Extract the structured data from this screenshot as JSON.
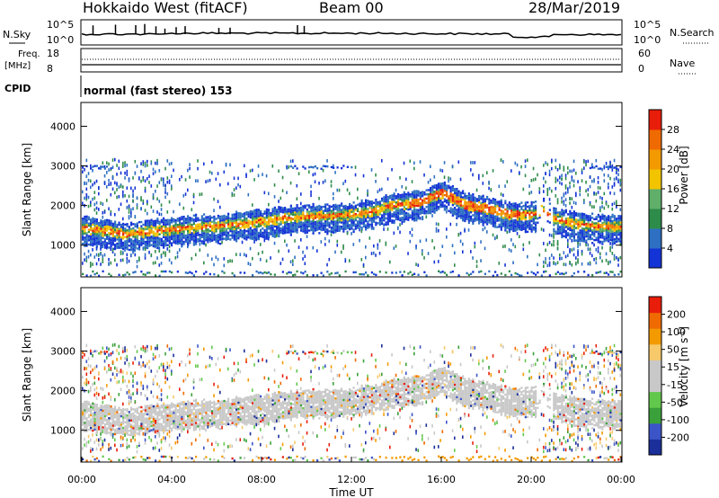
{
  "header": {
    "title": "Hokkaido West (fitACF)",
    "beam": "Beam 00",
    "date": "28/Mar/2019"
  },
  "noise_panel": {
    "left_label": "N.Sky",
    "right_label": "N.Search",
    "ticks_left": [
      "10^5",
      "10^0"
    ],
    "ticks_right": [
      "10^5",
      "10^0"
    ]
  },
  "freq_panel": {
    "left_label_1": "Freq.",
    "left_label_2": "[MHz]",
    "right_label": "Nave",
    "ticks_left": [
      "18",
      "8"
    ],
    "ticks_right": [
      "60",
      "0"
    ]
  },
  "cpid": {
    "label": "CPID",
    "text": "normal (fast stereo) 153"
  },
  "colors": {
    "power_scale": [
      "#1433d6",
      "#2d6fc2",
      "#2e8c4a",
      "#5fae6a",
      "#f2c400",
      "#f39a00",
      "#ef6a00",
      "#e81d0a"
    ],
    "velocity_scale": [
      "#e81d0a",
      "#ef6a00",
      "#f39a00",
      "#f7c96a",
      "#c8c8c8",
      "#c8c8c8",
      "#62c84c",
      "#3aa13a",
      "#3b55c8",
      "#1a2f9a"
    ],
    "noise_line": "#000000"
  },
  "chart_data": [
    {
      "type": "heatmap",
      "name": "power",
      "ylabel": "Slant Range [km]",
      "xlabel": "",
      "yticks": [
        "1000",
        "2000",
        "3000",
        "4000"
      ],
      "xticks": [],
      "ylim": [
        200,
        4600
      ],
      "xlim": [
        "00:00",
        "24:00"
      ],
      "colorbar": {
        "label": "Power [dB]",
        "ticks": [
          "4",
          "8",
          "12",
          "16",
          "20",
          "24",
          "28"
        ],
        "range": [
          0,
          32
        ]
      },
      "scatter_band_km": {
        "time_h": [
          0,
          1,
          2,
          3,
          4,
          5,
          6,
          7,
          8,
          9,
          10,
          11,
          12,
          13,
          14,
          15,
          16,
          17,
          18,
          19,
          20,
          20.5,
          21,
          22,
          23,
          24
        ],
        "center": [
          1450,
          1380,
          1300,
          1380,
          1420,
          1480,
          1500,
          1570,
          1620,
          1700,
          1750,
          1760,
          1800,
          1900,
          2050,
          2100,
          2350,
          2050,
          1950,
          1800,
          1800,
          1900,
          1700,
          1550,
          1500,
          1480
        ]
      }
    },
    {
      "type": "heatmap",
      "name": "velocity",
      "ylabel": "Slant Range [km]",
      "xlabel": "Time UT",
      "yticks": [
        "1000",
        "2000",
        "3000",
        "4000"
      ],
      "xticks": [
        "00:00",
        "04:00",
        "08:00",
        "12:00",
        "16:00",
        "20:00",
        "00:00"
      ],
      "ylim": [
        200,
        4600
      ],
      "xlim": [
        "00:00",
        "24:00"
      ],
      "colorbar": {
        "label": "Velocity [m s^-1]",
        "ticks": [
          "200",
          "100",
          "50",
          "15",
          "-15",
          "-50",
          "-100",
          "-200"
        ],
        "range": [
          -250,
          250
        ]
      }
    }
  ]
}
